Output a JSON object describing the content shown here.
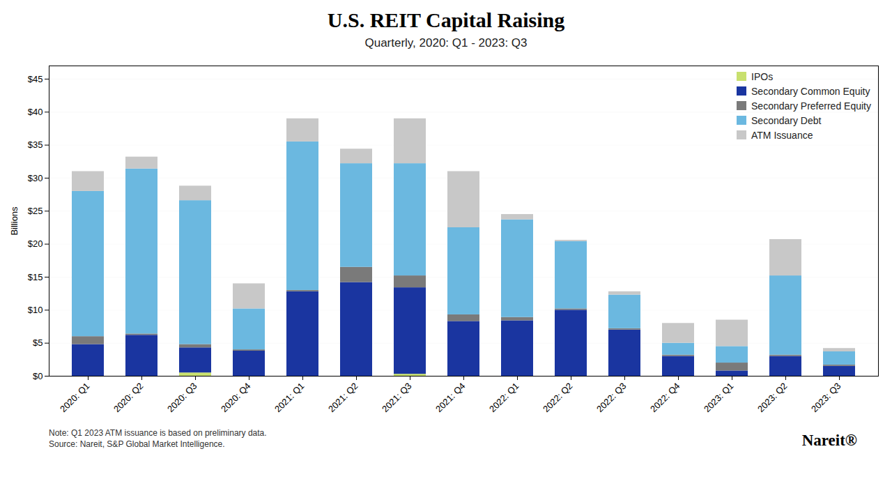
{
  "chart_data": {
    "type": "bar",
    "stacked": true,
    "title": "U.S. REIT Capital Raising",
    "subtitle": "Quarterly, 2020: Q1 - 2023: Q3",
    "ylabel": "Billions",
    "ylim": [
      0,
      47
    ],
    "yticks": [
      {
        "value": 0,
        "label": "$0"
      },
      {
        "value": 5,
        "label": "$5"
      },
      {
        "value": 10,
        "label": "$10"
      },
      {
        "value": 15,
        "label": "$15"
      },
      {
        "value": 20,
        "label": "$20"
      },
      {
        "value": 25,
        "label": "$25"
      },
      {
        "value": 30,
        "label": "$30"
      },
      {
        "value": 35,
        "label": "$35"
      },
      {
        "value": 40,
        "label": "$40"
      },
      {
        "value": 45,
        "label": "$45"
      }
    ],
    "categories": [
      "2020: Q1",
      "2020: Q2",
      "2020: Q3",
      "2020: Q4",
      "2021: Q1",
      "2021: Q2",
      "2021: Q3",
      "2021: Q4",
      "2022: Q1",
      "2022: Q2",
      "2022: Q3",
      "2022: Q4",
      "2023: Q1",
      "2023: Q2",
      "2023: Q3"
    ],
    "series": [
      {
        "name": "IPOs",
        "color": "#c8e06e",
        "values": [
          0.0,
          0.0,
          0.5,
          0.0,
          0.0,
          0.0,
          0.3,
          0.0,
          0.0,
          0.0,
          0.0,
          0.0,
          0.0,
          0.0,
          0.0
        ]
      },
      {
        "name": "Secondary Common Equity",
        "color": "#1a35a0",
        "values": [
          4.8,
          6.2,
          3.8,
          3.8,
          12.8,
          14.2,
          13.1,
          8.3,
          8.4,
          10.0,
          7.0,
          3.0,
          0.8,
          3.0,
          1.5
        ]
      },
      {
        "name": "Secondary Preferred Equity",
        "color": "#7a7a7a",
        "values": [
          1.2,
          0.2,
          0.5,
          0.2,
          0.2,
          2.3,
          1.8,
          1.0,
          0.5,
          0.2,
          0.2,
          0.2,
          1.2,
          0.2,
          0.2
        ]
      },
      {
        "name": "Secondary Debt",
        "color": "#6bb8e0",
        "values": [
          22.0,
          25.0,
          21.8,
          6.2,
          22.5,
          15.7,
          17.0,
          13.2,
          14.8,
          10.2,
          5.1,
          1.8,
          2.5,
          12.0,
          2.0
        ]
      },
      {
        "name": "ATM Issuance",
        "color": "#c8c8c8",
        "values": [
          3.0,
          1.8,
          2.2,
          3.8,
          3.5,
          2.2,
          6.8,
          8.5,
          0.8,
          0.2,
          0.5,
          3.0,
          4.0,
          5.5,
          0.5
        ]
      }
    ],
    "grid": true,
    "legend": "upper right",
    "note": "Note: Q1 2023 ATM issuance is based on preliminary data.\nSource: Nareit, S&P Global Market Intelligence.",
    "annotations": [
      "Nareit®"
    ]
  }
}
